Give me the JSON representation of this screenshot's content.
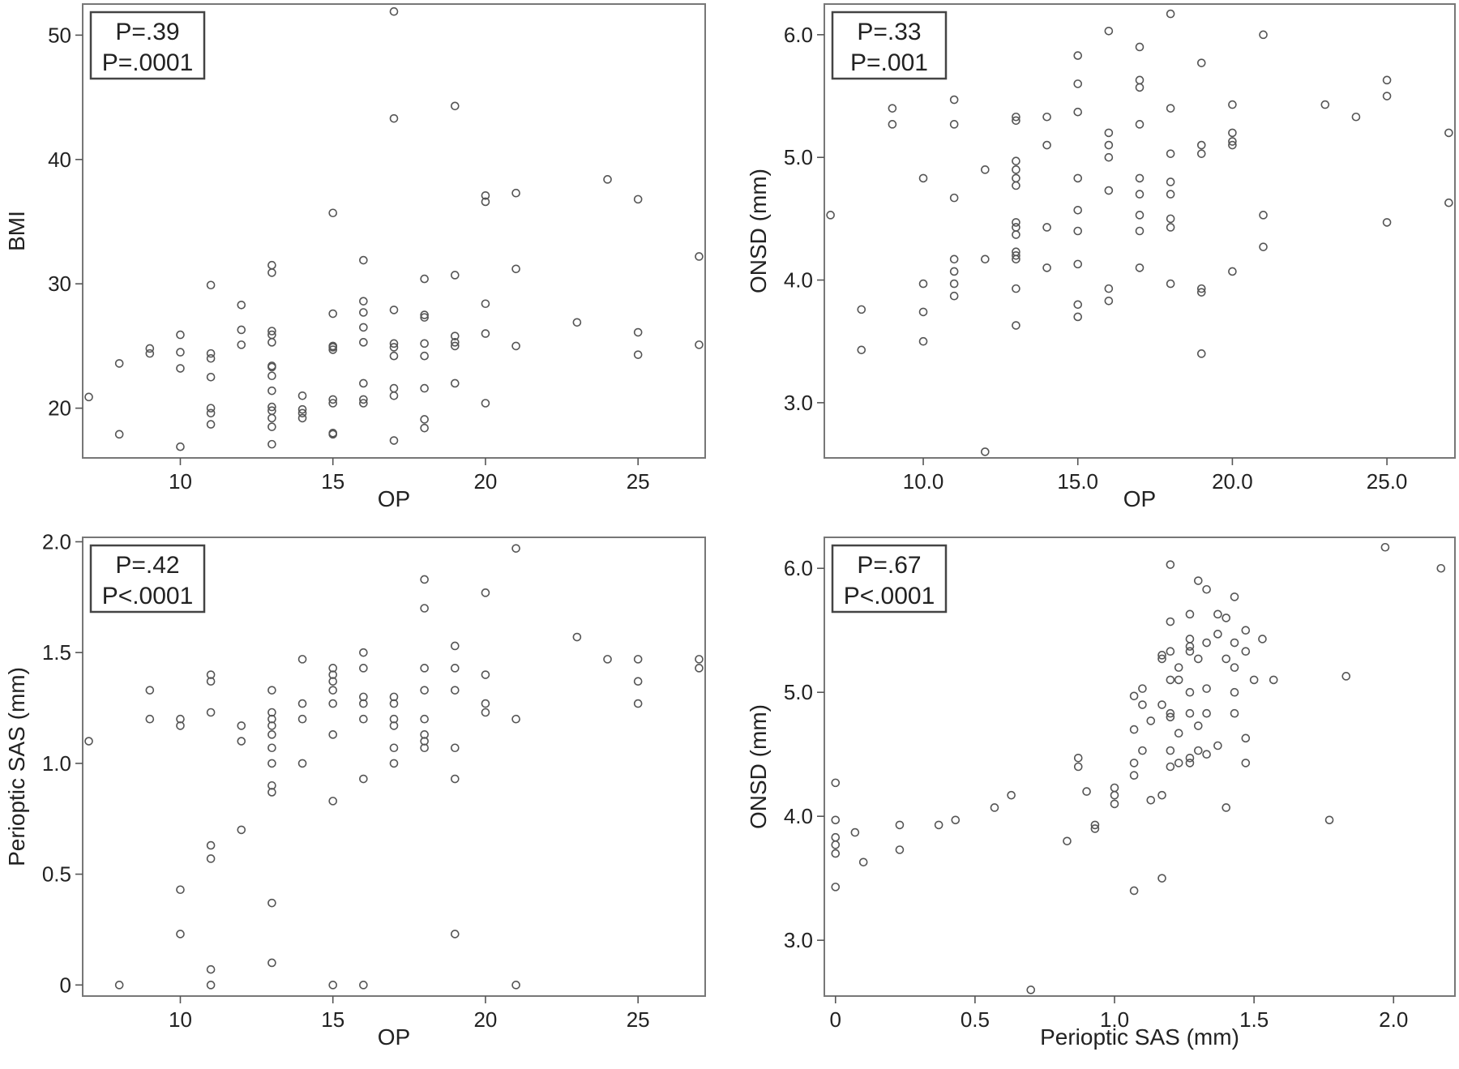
{
  "chart_data": [
    {
      "id": "op_bmi",
      "type": "scatter",
      "xlabel": "OP",
      "ylabel": "BMI",
      "xlim": [
        6.8,
        27.2
      ],
      "ylim": [
        16,
        52.5
      ],
      "xticks": [
        10,
        15,
        20,
        25
      ],
      "yticks": [
        20,
        30,
        40,
        50
      ],
      "tick_format": 0,
      "annotation": [
        "P=.39",
        "P=.0001"
      ],
      "points": [
        [
          7,
          20.9
        ],
        [
          8,
          17.9
        ],
        [
          8,
          23.6
        ],
        [
          9,
          24.4
        ],
        [
          9,
          24.8
        ],
        [
          10,
          16.9
        ],
        [
          10,
          23.2
        ],
        [
          10,
          24.5
        ],
        [
          10,
          25.9
        ],
        [
          11,
          18.7
        ],
        [
          11,
          19.6
        ],
        [
          11,
          20.0
        ],
        [
          11,
          22.5
        ],
        [
          11,
          24.0
        ],
        [
          11,
          24.4
        ],
        [
          11,
          29.9
        ],
        [
          12,
          25.1
        ],
        [
          12,
          26.3
        ],
        [
          12,
          28.3
        ],
        [
          13,
          17.1
        ],
        [
          13,
          18.5
        ],
        [
          13,
          19.2
        ],
        [
          13,
          19.8
        ],
        [
          13,
          20.1
        ],
        [
          13,
          21.4
        ],
        [
          13,
          22.6
        ],
        [
          13,
          23.3
        ],
        [
          13,
          23.4
        ],
        [
          13,
          25.3
        ],
        [
          13,
          25.9
        ],
        [
          13,
          26.2
        ],
        [
          13,
          30.9
        ],
        [
          13,
          31.5
        ],
        [
          14,
          19.2
        ],
        [
          14,
          19.6
        ],
        [
          14,
          19.9
        ],
        [
          14,
          21.0
        ],
        [
          15,
          17.9
        ],
        [
          15,
          18.0
        ],
        [
          15,
          20.4
        ],
        [
          15,
          20.7
        ],
        [
          15,
          24.7
        ],
        [
          15,
          24.9
        ],
        [
          15,
          25.0
        ],
        [
          15,
          27.6
        ],
        [
          15,
          35.7
        ],
        [
          16,
          20.4
        ],
        [
          16,
          20.7
        ],
        [
          16,
          22.0
        ],
        [
          16,
          25.3
        ],
        [
          16,
          26.5
        ],
        [
          16,
          27.7
        ],
        [
          16,
          28.6
        ],
        [
          16,
          31.9
        ],
        [
          17,
          17.4
        ],
        [
          17,
          21.0
        ],
        [
          17,
          21.6
        ],
        [
          17,
          24.2
        ],
        [
          17,
          24.9
        ],
        [
          17,
          25.2
        ],
        [
          17,
          27.9
        ],
        [
          17,
          43.3
        ],
        [
          17,
          51.9
        ],
        [
          18,
          18.4
        ],
        [
          18,
          19.1
        ],
        [
          18,
          21.6
        ],
        [
          18,
          24.2
        ],
        [
          18,
          25.2
        ],
        [
          18,
          27.3
        ],
        [
          18,
          27.5
        ],
        [
          18,
          30.4
        ],
        [
          19,
          22.0
        ],
        [
          19,
          25.0
        ],
        [
          19,
          25.3
        ],
        [
          19,
          25.8
        ],
        [
          19,
          30.7
        ],
        [
          19,
          44.3
        ],
        [
          20,
          20.4
        ],
        [
          20,
          26.0
        ],
        [
          20,
          28.4
        ],
        [
          20,
          36.6
        ],
        [
          20,
          37.1
        ],
        [
          21,
          25.0
        ],
        [
          21,
          31.2
        ],
        [
          21,
          37.3
        ],
        [
          23,
          26.9
        ],
        [
          24,
          38.4
        ],
        [
          25,
          24.3
        ],
        [
          25,
          26.1
        ],
        [
          25,
          36.8
        ],
        [
          27,
          25.1
        ],
        [
          27,
          32.2
        ]
      ]
    },
    {
      "id": "op_onsd",
      "type": "scatter",
      "xlabel": "OP",
      "ylabel": "ONSD (mm)",
      "xlim": [
        6.8,
        27.2
      ],
      "ylim": [
        2.55,
        6.25
      ],
      "xticks": [
        10,
        15,
        20,
        25
      ],
      "yticks": [
        3.0,
        4.0,
        5.0,
        6.0
      ],
      "tick_format": 1,
      "annotation": [
        "P=.33",
        "P=.001"
      ],
      "points": [
        [
          7,
          4.53
        ],
        [
          8,
          3.43
        ],
        [
          8,
          3.76
        ],
        [
          9,
          5.27
        ],
        [
          9,
          5.4
        ],
        [
          10,
          3.5
        ],
        [
          10,
          3.74
        ],
        [
          10,
          3.97
        ],
        [
          10,
          4.83
        ],
        [
          11,
          3.87
        ],
        [
          11,
          3.97
        ],
        [
          11,
          4.07
        ],
        [
          11,
          4.17
        ],
        [
          11,
          4.67
        ],
        [
          11,
          5.27
        ],
        [
          11,
          5.47
        ],
        [
          12,
          2.6
        ],
        [
          12,
          4.17
        ],
        [
          12,
          4.9
        ],
        [
          13,
          3.63
        ],
        [
          13,
          3.93
        ],
        [
          13,
          4.17
        ],
        [
          13,
          4.2
        ],
        [
          13,
          4.23
        ],
        [
          13,
          4.37
        ],
        [
          13,
          4.43
        ],
        [
          13,
          4.47
        ],
        [
          13,
          4.77
        ],
        [
          13,
          4.83
        ],
        [
          13,
          4.9
        ],
        [
          13,
          4.97
        ],
        [
          13,
          5.3
        ],
        [
          13,
          5.33
        ],
        [
          14,
          4.1
        ],
        [
          14,
          4.43
        ],
        [
          14,
          5.1
        ],
        [
          14,
          5.33
        ],
        [
          15,
          3.7
        ],
        [
          15,
          3.8
        ],
        [
          15,
          4.13
        ],
        [
          15,
          4.4
        ],
        [
          15,
          4.57
        ],
        [
          15,
          4.83
        ],
        [
          15,
          5.37
        ],
        [
          15,
          5.6
        ],
        [
          15,
          5.83
        ],
        [
          16,
          3.83
        ],
        [
          16,
          3.93
        ],
        [
          16,
          4.73
        ],
        [
          16,
          5.0
        ],
        [
          16,
          5.1
        ],
        [
          16,
          5.2
        ],
        [
          16,
          6.03
        ],
        [
          17,
          4.1
        ],
        [
          17,
          4.4
        ],
        [
          17,
          4.53
        ],
        [
          17,
          4.7
        ],
        [
          17,
          4.83
        ],
        [
          17,
          5.27
        ],
        [
          17,
          5.57
        ],
        [
          17,
          5.63
        ],
        [
          17,
          5.9
        ],
        [
          18,
          3.97
        ],
        [
          18,
          4.43
        ],
        [
          18,
          4.5
        ],
        [
          18,
          4.7
        ],
        [
          18,
          4.8
        ],
        [
          18,
          5.03
        ],
        [
          18,
          5.4
        ],
        [
          18,
          6.17
        ],
        [
          19,
          3.4
        ],
        [
          19,
          3.9
        ],
        [
          19,
          3.93
        ],
        [
          19,
          5.03
        ],
        [
          19,
          5.1
        ],
        [
          19,
          5.77
        ],
        [
          20,
          4.07
        ],
        [
          20,
          5.1
        ],
        [
          20,
          5.13
        ],
        [
          20,
          5.2
        ],
        [
          20,
          5.43
        ],
        [
          21,
          4.27
        ],
        [
          21,
          4.53
        ],
        [
          21,
          6.0
        ],
        [
          23,
          5.43
        ],
        [
          24,
          5.33
        ],
        [
          25,
          4.47
        ],
        [
          25,
          5.5
        ],
        [
          25,
          5.63
        ],
        [
          27,
          4.63
        ],
        [
          27,
          5.2
        ]
      ]
    },
    {
      "id": "op_sas",
      "type": "scatter",
      "xlabel": "OP",
      "ylabel": "Perioptic SAS (mm)",
      "xlim": [
        6.8,
        27.2
      ],
      "ylim": [
        -0.05,
        2.02
      ],
      "xticks": [
        10,
        15,
        20,
        25
      ],
      "yticks": [
        0,
        0.5,
        1.0,
        1.5,
        2.0
      ],
      "tick_labels_y": [
        "0",
        "0.5",
        "1.0",
        "1.5",
        "2.0"
      ],
      "annotation": [
        "P=.42",
        "P<.0001"
      ],
      "points": [
        [
          7,
          1.1
        ],
        [
          8,
          0.0
        ],
        [
          9,
          1.2
        ],
        [
          9,
          1.33
        ],
        [
          10,
          0.23
        ],
        [
          10,
          0.43
        ],
        [
          10,
          1.17
        ],
        [
          10,
          1.2
        ],
        [
          11,
          0.0
        ],
        [
          11,
          0.07
        ],
        [
          11,
          0.57
        ],
        [
          11,
          0.63
        ],
        [
          11,
          1.23
        ],
        [
          11,
          1.37
        ],
        [
          11,
          1.4
        ],
        [
          12,
          0.7
        ],
        [
          12,
          1.1
        ],
        [
          12,
          1.17
        ],
        [
          13,
          0.1
        ],
        [
          13,
          0.37
        ],
        [
          13,
          0.87
        ],
        [
          13,
          0.9
        ],
        [
          13,
          1.0
        ],
        [
          13,
          1.07
        ],
        [
          13,
          1.13
        ],
        [
          13,
          1.17
        ],
        [
          13,
          1.2
        ],
        [
          13,
          1.23
        ],
        [
          13,
          1.33
        ],
        [
          14,
          1.0
        ],
        [
          14,
          1.2
        ],
        [
          14,
          1.27
        ],
        [
          14,
          1.47
        ],
        [
          15,
          0.0
        ],
        [
          15,
          0.83
        ],
        [
          15,
          1.13
        ],
        [
          15,
          1.27
        ],
        [
          15,
          1.33
        ],
        [
          15,
          1.37
        ],
        [
          15,
          1.4
        ],
        [
          15,
          1.43
        ],
        [
          16,
          0.0
        ],
        [
          16,
          0.93
        ],
        [
          16,
          1.2
        ],
        [
          16,
          1.27
        ],
        [
          16,
          1.3
        ],
        [
          16,
          1.43
        ],
        [
          16,
          1.5
        ],
        [
          17,
          1.0
        ],
        [
          17,
          1.07
        ],
        [
          17,
          1.17
        ],
        [
          17,
          1.2
        ],
        [
          17,
          1.27
        ],
        [
          17,
          1.3
        ],
        [
          18,
          1.07
        ],
        [
          18,
          1.1
        ],
        [
          18,
          1.13
        ],
        [
          18,
          1.2
        ],
        [
          18,
          1.33
        ],
        [
          18,
          1.43
        ],
        [
          18,
          1.7
        ],
        [
          18,
          1.83
        ],
        [
          19,
          0.23
        ],
        [
          19,
          0.93
        ],
        [
          19,
          1.07
        ],
        [
          19,
          1.33
        ],
        [
          19,
          1.43
        ],
        [
          19,
          1.53
        ],
        [
          20,
          1.23
        ],
        [
          20,
          1.27
        ],
        [
          20,
          1.4
        ],
        [
          20,
          1.77
        ],
        [
          21,
          0.0
        ],
        [
          21,
          1.2
        ],
        [
          21,
          1.97
        ],
        [
          23,
          1.57
        ],
        [
          24,
          1.47
        ],
        [
          25,
          1.27
        ],
        [
          25,
          1.37
        ],
        [
          25,
          1.47
        ],
        [
          27,
          1.43
        ],
        [
          27,
          1.47
        ]
      ]
    },
    {
      "id": "sas_onsd",
      "type": "scatter",
      "xlabel": "Perioptic SAS (mm)",
      "ylabel": "ONSD (mm)",
      "xlim": [
        -0.04,
        2.22
      ],
      "ylim": [
        2.55,
        6.25
      ],
      "xticks": [
        0,
        0.5,
        1.0,
        1.5,
        2.0
      ],
      "tick_labels_x": [
        "0",
        "0.5",
        "1.0",
        "1.5",
        "2.0"
      ],
      "yticks": [
        3.0,
        4.0,
        5.0,
        6.0
      ],
      "tick_format": 1,
      "annotation": [
        "P=.67",
        "P<.0001"
      ],
      "points": [
        [
          0.0,
          3.43
        ],
        [
          0.0,
          3.7
        ],
        [
          0.0,
          3.77
        ],
        [
          0.0,
          3.83
        ],
        [
          0.0,
          3.97
        ],
        [
          0.0,
          4.27
        ],
        [
          0.07,
          3.87
        ],
        [
          0.1,
          3.63
        ],
        [
          0.23,
          3.73
        ],
        [
          0.23,
          3.93
        ],
        [
          0.37,
          3.93
        ],
        [
          0.43,
          3.97
        ],
        [
          0.57,
          4.07
        ],
        [
          0.63,
          4.17
        ],
        [
          0.7,
          2.6
        ],
        [
          0.83,
          3.8
        ],
        [
          0.87,
          4.4
        ],
        [
          0.87,
          4.47
        ],
        [
          0.9,
          4.2
        ],
        [
          0.93,
          3.9
        ],
        [
          0.93,
          3.93
        ],
        [
          1.0,
          4.1
        ],
        [
          1.0,
          4.17
        ],
        [
          1.0,
          4.23
        ],
        [
          1.07,
          3.4
        ],
        [
          1.07,
          4.33
        ],
        [
          1.07,
          4.43
        ],
        [
          1.07,
          4.7
        ],
        [
          1.07,
          4.97
        ],
        [
          1.1,
          4.53
        ],
        [
          1.1,
          4.9
        ],
        [
          1.1,
          5.03
        ],
        [
          1.13,
          4.13
        ],
        [
          1.13,
          4.77
        ],
        [
          1.17,
          3.5
        ],
        [
          1.17,
          4.17
        ],
        [
          1.17,
          4.9
        ],
        [
          1.17,
          5.27
        ],
        [
          1.17,
          5.3
        ],
        [
          1.2,
          4.4
        ],
        [
          1.2,
          4.53
        ],
        [
          1.2,
          4.8
        ],
        [
          1.2,
          4.83
        ],
        [
          1.2,
          5.1
        ],
        [
          1.2,
          5.33
        ],
        [
          1.2,
          5.57
        ],
        [
          1.2,
          6.03
        ],
        [
          1.23,
          4.43
        ],
        [
          1.23,
          4.67
        ],
        [
          1.23,
          5.1
        ],
        [
          1.23,
          5.2
        ],
        [
          1.27,
          4.43
        ],
        [
          1.27,
          4.47
        ],
        [
          1.27,
          4.83
        ],
        [
          1.27,
          5.0
        ],
        [
          1.27,
          5.33
        ],
        [
          1.27,
          5.37
        ],
        [
          1.27,
          5.43
        ],
        [
          1.27,
          5.63
        ],
        [
          1.3,
          4.53
        ],
        [
          1.3,
          4.73
        ],
        [
          1.3,
          5.27
        ],
        [
          1.3,
          5.9
        ],
        [
          1.33,
          4.5
        ],
        [
          1.33,
          4.83
        ],
        [
          1.33,
          5.03
        ],
        [
          1.33,
          5.4
        ],
        [
          1.33,
          5.83
        ],
        [
          1.37,
          4.57
        ],
        [
          1.37,
          5.47
        ],
        [
          1.37,
          5.63
        ],
        [
          1.4,
          4.07
        ],
        [
          1.4,
          5.27
        ],
        [
          1.4,
          5.6
        ],
        [
          1.43,
          4.83
        ],
        [
          1.43,
          5.0
        ],
        [
          1.43,
          5.2
        ],
        [
          1.43,
          5.4
        ],
        [
          1.43,
          5.77
        ],
        [
          1.47,
          4.43
        ],
        [
          1.47,
          4.63
        ],
        [
          1.47,
          5.33
        ],
        [
          1.47,
          5.5
        ],
        [
          1.5,
          5.1
        ],
        [
          1.53,
          5.43
        ],
        [
          1.57,
          5.1
        ],
        [
          1.77,
          3.97
        ],
        [
          1.83,
          5.13
        ],
        [
          1.97,
          6.17
        ],
        [
          2.17,
          6.0
        ]
      ]
    }
  ]
}
